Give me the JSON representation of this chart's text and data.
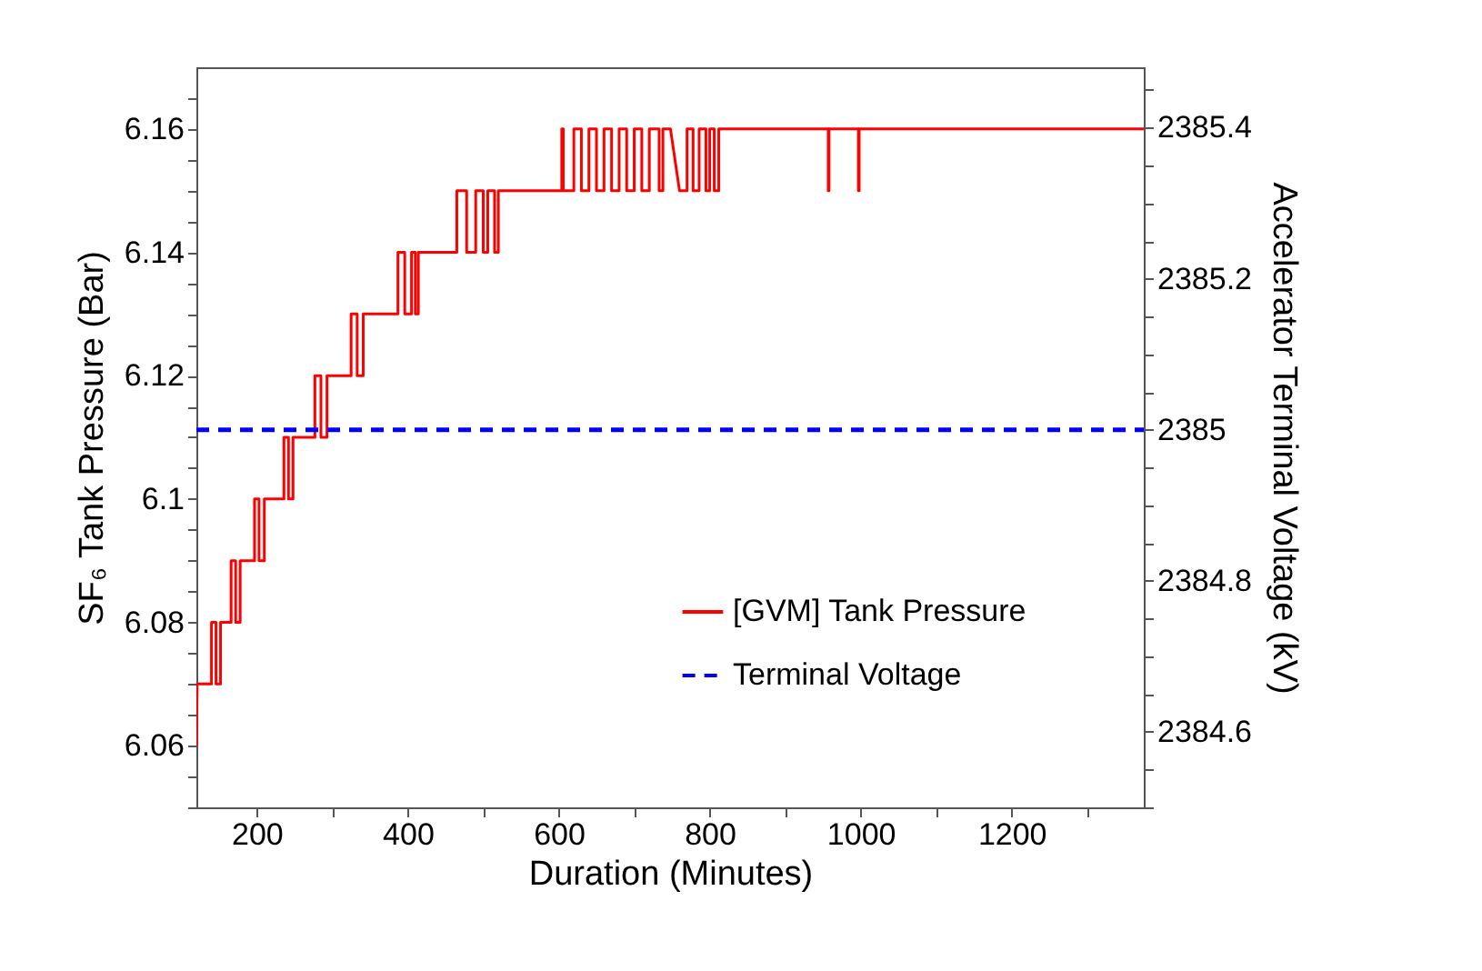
{
  "chart_data": {
    "type": "line",
    "xlabel": "Duration (Minutes)",
    "ylabel": "SF₆ Tank Pressure (Bar)",
    "y2label": "Accelerator Terminal Voltage (kV)",
    "xlim": [
      120,
      1375
    ],
    "xticks": [
      200,
      {
        "value": 300,
        "label": null
      },
      400,
      {
        "value": 500,
        "label": null
      },
      600,
      {
        "value": 700,
        "label": null
      },
      800,
      {
        "value": 900,
        "label": null
      },
      1000,
      {
        "value": 1100,
        "label": null
      },
      1200,
      {
        "value": 1300,
        "label": null
      }
    ],
    "ylim": [
      6.05,
      6.17
    ],
    "yticks": [
      {
        "value": 6.05,
        "label": null
      },
      {
        "value": 6.055,
        "label": null
      },
      6.06,
      {
        "value": 6.065,
        "label": null
      },
      {
        "value": 6.07,
        "label": null
      },
      {
        "value": 6.075,
        "label": null
      },
      6.08,
      {
        "value": 6.085,
        "label": null
      },
      {
        "value": 6.09,
        "label": null
      },
      {
        "value": 6.095,
        "label": null
      },
      6.1,
      {
        "value": 6.105,
        "label": null
      },
      {
        "value": 6.11,
        "label": null
      },
      {
        "value": 6.115,
        "label": null
      },
      6.12,
      {
        "value": 6.125,
        "label": null
      },
      {
        "value": 6.13,
        "label": null
      },
      {
        "value": 6.135,
        "label": null
      },
      6.14,
      {
        "value": 6.145,
        "label": null
      },
      {
        "value": 6.15,
        "label": null
      },
      {
        "value": 6.155,
        "label": null
      },
      6.16,
      {
        "value": 6.165,
        "label": null
      }
    ],
    "y2lim": [
      2384.5,
      2385.48
    ],
    "y2ticks": [
      {
        "value": 2384.5,
        "label": null
      },
      {
        "value": 2384.55,
        "label": null
      },
      2384.6,
      {
        "value": 2384.65,
        "label": null
      },
      {
        "value": 2384.7,
        "label": null
      },
      {
        "value": 2384.75,
        "label": null
      },
      2384.8,
      {
        "value": 2384.85,
        "label": null
      },
      {
        "value": 2384.9,
        "label": null
      },
      {
        "value": 2384.95,
        "label": null
      },
      2385,
      {
        "value": 2385.05,
        "label": null
      },
      {
        "value": 2385.1,
        "label": null
      },
      {
        "value": 2385.15,
        "label": null
      },
      2385.2,
      {
        "value": 2385.25,
        "label": null
      },
      {
        "value": 2385.3,
        "label": null
      },
      {
        "value": 2385.35,
        "label": null
      },
      2385.4,
      {
        "value": 2385.45,
        "label": null
      }
    ],
    "grid": false,
    "legend": "bottom right",
    "series": [
      {
        "name": "[GVM] Tank Pressure",
        "color": "#ff0000",
        "line_style": "solid",
        "x": [
          120,
          121,
          140,
          140,
          146,
          146,
          152,
          152,
          166,
          166,
          172,
          172,
          178,
          178,
          197,
          197,
          203,
          203,
          210,
          210,
          236,
          236,
          242,
          242,
          248,
          248,
          277,
          277,
          285,
          285,
          293,
          293,
          325,
          325,
          333,
          333,
          341,
          341,
          387,
          387,
          396,
          396,
          405,
          405,
          410,
          410,
          414,
          414,
          465,
          465,
          478,
          478,
          490,
          490,
          500,
          500,
          506,
          506,
          515,
          515,
          520,
          520,
          604,
          604,
          606,
          606,
          620,
          620,
          630,
          630,
          640,
          640,
          650,
          650,
          660,
          660,
          670,
          670,
          680,
          680,
          690,
          690,
          700,
          700,
          710,
          710,
          720,
          720,
          733,
          733,
          738,
          738,
          748,
          760,
          770,
          770,
          778,
          778,
          786,
          786,
          795,
          795,
          800,
          800,
          806,
          806,
          812,
          812,
          957,
          957,
          958,
          958,
          997,
          997,
          998,
          998,
          1375
        ],
        "values": [
          6.06,
          6.07,
          6.07,
          6.08,
          6.08,
          6.07,
          6.07,
          6.08,
          6.08,
          6.09,
          6.09,
          6.08,
          6.08,
          6.09,
          6.09,
          6.1,
          6.1,
          6.09,
          6.09,
          6.1,
          6.1,
          6.11,
          6.11,
          6.1,
          6.1,
          6.11,
          6.11,
          6.12,
          6.12,
          6.11,
          6.11,
          6.12,
          6.12,
          6.13,
          6.13,
          6.12,
          6.12,
          6.13,
          6.13,
          6.14,
          6.14,
          6.13,
          6.13,
          6.14,
          6.14,
          6.13,
          6.13,
          6.14,
          6.14,
          6.15,
          6.15,
          6.14,
          6.14,
          6.15,
          6.15,
          6.14,
          6.14,
          6.15,
          6.15,
          6.14,
          6.14,
          6.15,
          6.15,
          6.16,
          6.16,
          6.15,
          6.15,
          6.16,
          6.16,
          6.15,
          6.15,
          6.16,
          6.16,
          6.15,
          6.15,
          6.16,
          6.16,
          6.15,
          6.15,
          6.16,
          6.16,
          6.15,
          6.15,
          6.16,
          6.16,
          6.15,
          6.15,
          6.16,
          6.16,
          6.15,
          6.15,
          6.16,
          6.16,
          6.15,
          6.15,
          6.16,
          6.16,
          6.15,
          6.15,
          6.16,
          6.16,
          6.15,
          6.15,
          6.16,
          6.16,
          6.15,
          6.15,
          6.16,
          6.16,
          6.15,
          6.15,
          6.16,
          6.16,
          6.15,
          6.15,
          6.16,
          6.16
        ]
      },
      {
        "name": "Terminal Voltage",
        "color": "#0000ff",
        "line_style": "dashed",
        "axis": "y2",
        "x": [
          120,
          1375
        ],
        "values": [
          2385,
          2385
        ]
      }
    ]
  }
}
